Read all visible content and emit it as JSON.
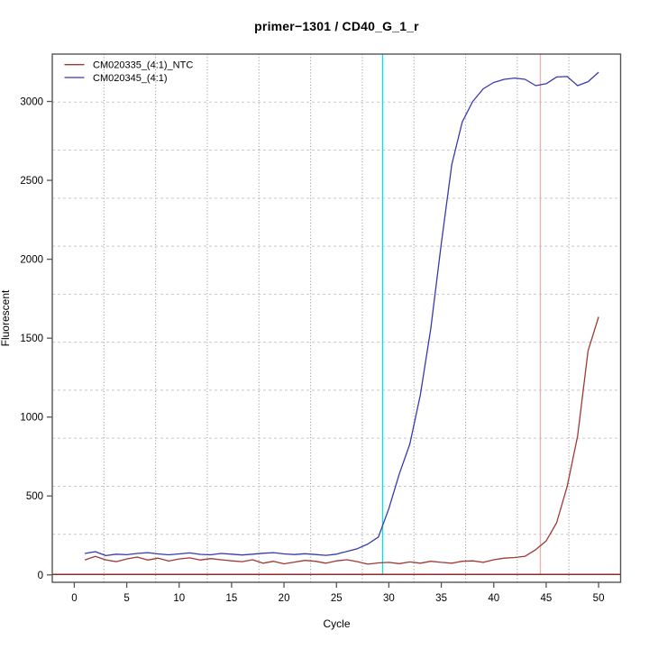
{
  "window": {
    "background": "#ffffff"
  },
  "chart_data": {
    "type": "line",
    "title": "primer−1301 / CD40_G_1_r",
    "xlabel": "Cycle",
    "ylabel": "Fluorescent",
    "x_ticks": [
      0,
      5,
      10,
      15,
      20,
      25,
      30,
      35,
      40,
      45,
      50
    ],
    "y_ticks": [
      0,
      500,
      1000,
      1500,
      2000,
      2500,
      3000
    ],
    "x_range": [
      -2.1,
      52.1
    ],
    "y_range": [
      -47,
      3300
    ],
    "grid": {
      "divisions": 11,
      "h_color": "#c8c8c8",
      "v_color": "#8e8e8e",
      "h_style": "dashed",
      "v_style": "dotted"
    },
    "x": [
      1,
      2,
      3,
      4,
      5,
      6,
      7,
      8,
      9,
      10,
      11,
      12,
      13,
      14,
      15,
      16,
      17,
      18,
      19,
      20,
      21,
      22,
      23,
      24,
      25,
      26,
      27,
      28,
      29,
      30,
      31,
      32,
      33,
      34,
      35,
      36,
      37,
      38,
      39,
      40,
      41,
      42,
      43,
      44,
      45,
      46,
      47,
      48,
      49,
      50
    ],
    "series": [
      {
        "name": "CM020335_(4:1)_NTC",
        "color": "#a03838",
        "values": [
          94,
          117,
          95,
          84,
          101,
          113,
          94,
          106,
          88,
          101,
          108,
          94,
          103,
          96,
          89,
          84,
          96,
          74,
          86,
          70,
          81,
          92,
          86,
          74,
          89,
          96,
          84,
          68,
          76,
          79,
          71,
          82,
          74,
          86,
          79,
          74,
          86,
          89,
          79,
          96,
          106,
          110,
          118,
          160,
          215,
          330,
          560,
          880,
          1420,
          1635
        ]
      },
      {
        "name": "CM020345_(4:1)",
        "color": "#3939ac",
        "values": [
          136,
          147,
          122,
          131,
          128,
          136,
          141,
          133,
          127,
          133,
          139,
          130,
          127,
          136,
          131,
          126,
          131,
          137,
          141,
          133,
          129,
          134,
          129,
          124,
          131,
          149,
          166,
          196,
          240,
          420,
          640,
          830,
          1140,
          1560,
          2100,
          2600,
          2870,
          3000,
          3080,
          3120,
          3140,
          3148,
          3140,
          3100,
          3112,
          3155,
          3158,
          3100,
          3125,
          3185
        ]
      }
    ],
    "markers": {
      "vlines": [
        {
          "label": "cyan-marker",
          "x": 29.4,
          "color": "#00e5e5"
        },
        {
          "label": "pink-marker",
          "x": 44.45,
          "color": "#f2acac"
        }
      ],
      "hlines": [
        {
          "label": "threshold",
          "y": 3,
          "color": "#8f2b2b"
        }
      ]
    },
    "legend": {
      "position": "top-left",
      "entries": [
        "CM020335_(4:1)_NTC",
        "CM020345_(4:1)"
      ]
    },
    "axis_color": "#555555",
    "text_color": "#000000"
  }
}
